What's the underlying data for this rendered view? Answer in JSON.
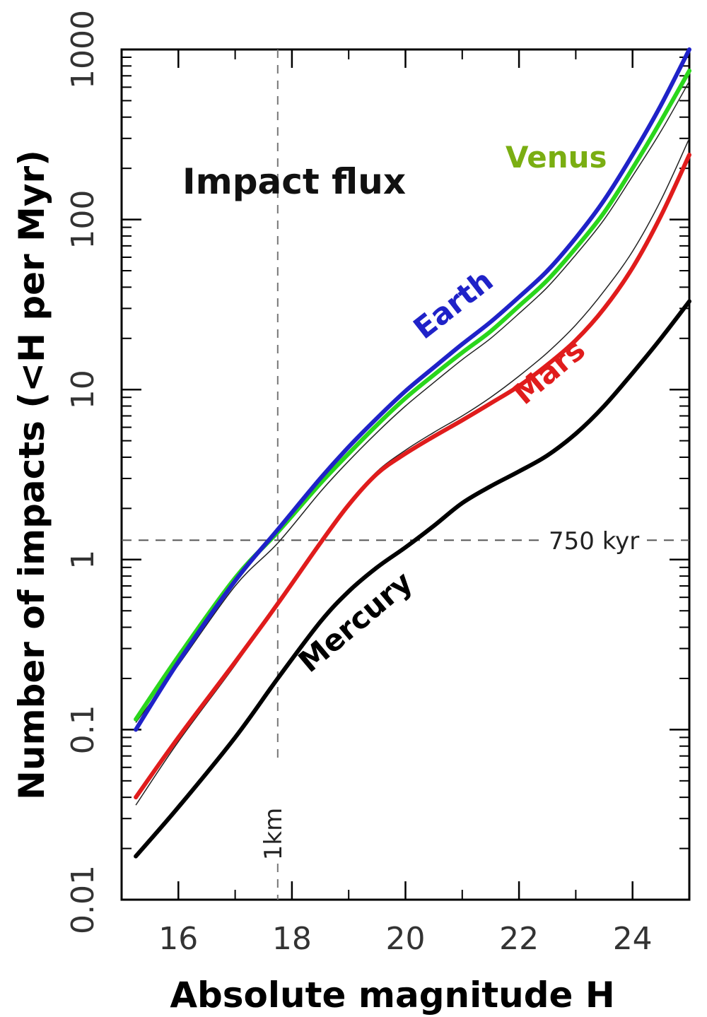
{
  "chart_data": {
    "type": "line",
    "title": "",
    "xlabel": "Absolute magnitude H",
    "ylabel": "Number of impacts  (<H per Myr)",
    "xlim": [
      15.0,
      25.0
    ],
    "ylim": [
      0.01,
      1000
    ],
    "y_scale": "log",
    "grid": false,
    "x_ticks": [
      16,
      18,
      20,
      22,
      24
    ],
    "y_ticks": [
      {
        "value": 0.01,
        "label": "0.01"
      },
      {
        "value": 0.1,
        "label": "0.1"
      },
      {
        "value": 1,
        "label": "1"
      },
      {
        "value": 10,
        "label": "10"
      },
      {
        "value": 100,
        "label": "100"
      },
      {
        "value": 1000,
        "label": "1000"
      }
    ],
    "x": [
      15.25,
      16,
      17,
      17.75,
      18.5,
      19,
      19.5,
      20,
      20.5,
      21,
      21.5,
      22,
      22.5,
      23,
      23.5,
      24,
      24.5,
      25
    ],
    "series": [
      {
        "name": "Earth",
        "color": "#1f22c8",
        "width": 6,
        "values": [
          0.1,
          0.25,
          0.75,
          1.5,
          3.0,
          4.6,
          6.8,
          9.8,
          13.5,
          18.5,
          25.0,
          35.0,
          50.0,
          78.0,
          130.0,
          240.0,
          470.0,
          1000.0
        ]
      },
      {
        "name": "Venus",
        "color": "#2ad61c",
        "width": 6,
        "values": [
          0.115,
          0.27,
          0.78,
          1.45,
          2.8,
          4.2,
          6.2,
          8.9,
          12.2,
          16.5,
          22.0,
          31.0,
          44.0,
          68.0,
          110.0,
          200.0,
          380.0,
          750.0
        ]
      },
      {
        "name": "Mars",
        "color": "#e01c1c",
        "width": 6,
        "values": [
          0.04,
          0.09,
          0.25,
          0.55,
          1.25,
          2.1,
          3.2,
          4.2,
          5.3,
          6.6,
          8.3,
          10.5,
          14.0,
          19.5,
          30.0,
          52.0,
          105.0,
          240.0
        ]
      },
      {
        "name": "Mercury",
        "color": "#000000",
        "width": 6,
        "values": [
          0.018,
          0.035,
          0.09,
          0.2,
          0.43,
          0.65,
          0.9,
          1.18,
          1.58,
          2.15,
          2.7,
          3.3,
          4.1,
          5.5,
          8.0,
          12.5,
          20.0,
          33.0
        ]
      }
    ],
    "thin_curves": [
      {
        "color": "#222222",
        "width": 1.5,
        "values": [
          0.11,
          0.24,
          0.7,
          1.25,
          2.5,
          3.8,
          5.6,
          8.0,
          11.0,
          15.0,
          20.0,
          28.0,
          40.0,
          62.0,
          100.0,
          180.0,
          330.0,
          650.0
        ]
      },
      {
        "color": "#222222",
        "width": 1.5,
        "values": [
          0.036,
          0.085,
          0.24,
          0.55,
          1.28,
          2.15,
          3.3,
          4.4,
          5.6,
          7.0,
          9.0,
          12.0,
          16.5,
          24.0,
          38.0,
          65.0,
          130.0,
          300.0
        ]
      }
    ],
    "reference_lines": {
      "horizontal": {
        "y": 1.3,
        "label": "750 kyr"
      },
      "vertical": {
        "x": 17.75,
        "label": "1km"
      }
    },
    "annotations": {
      "panel_title": "Impact flux"
    }
  }
}
